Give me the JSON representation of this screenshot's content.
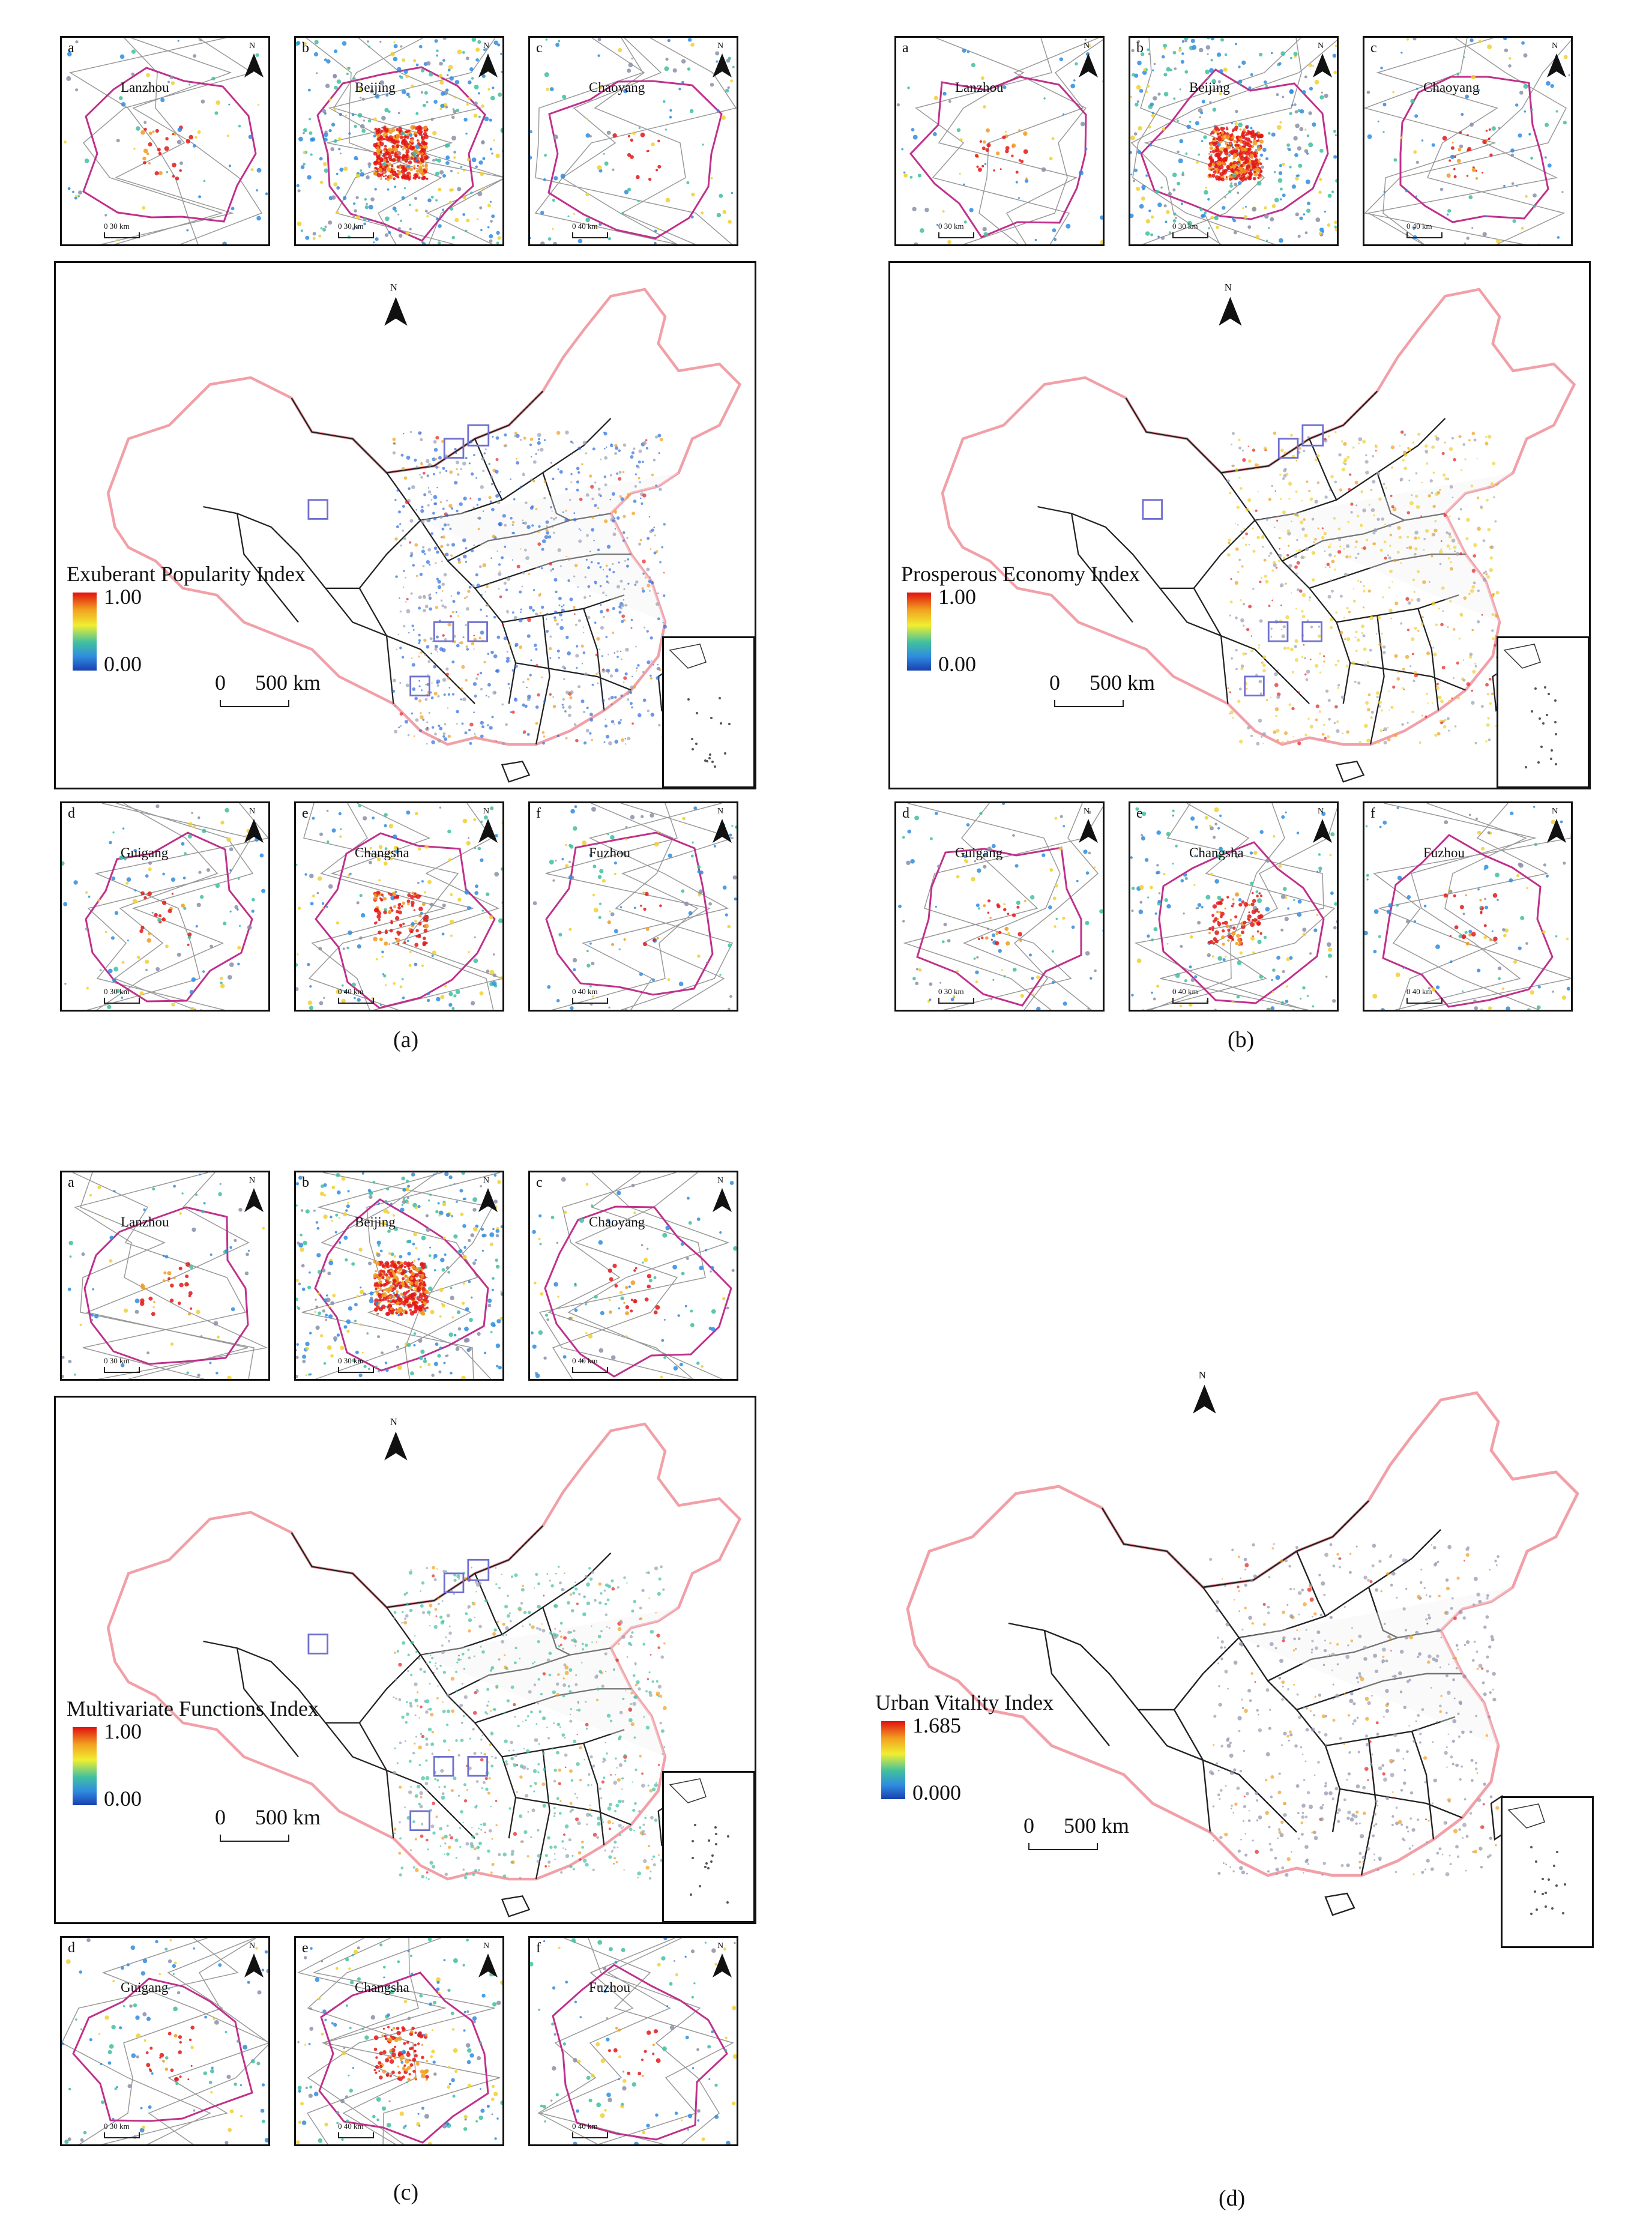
{
  "inset_labels": {
    "a": {
      "letter": "a",
      "city": "Lanzhou",
      "scale": "0   30 km"
    },
    "b": {
      "letter": "b",
      "city": "Beijing",
      "scale": "0   30 km"
    },
    "c": {
      "letter": "c",
      "city": "Chaoyang",
      "scale": "0   40 km"
    },
    "d": {
      "letter": "d",
      "city": "Guigang",
      "scale": "0   30 km"
    },
    "e": {
      "letter": "e",
      "city": "Changsha",
      "scale": "0   40 km"
    },
    "f": {
      "letter": "f",
      "city": "Fuzhou",
      "scale": "0   40 km"
    }
  },
  "north_label": "N",
  "main_scale": {
    "zero": "0",
    "distance": "500  km"
  },
  "panels": [
    {
      "caption": "(a)",
      "index_title": "Exuberant Popularity Index",
      "max": "1.00",
      "min": "0.00"
    },
    {
      "caption": "(b)",
      "index_title": "Prosperous Economy Index",
      "max": "1.00",
      "min": "0.00"
    },
    {
      "caption": "(c)",
      "index_title": "Multivariate Functions Index",
      "max": "1.00",
      "min": "0.00"
    },
    {
      "caption": "(d)",
      "index_title": "Urban Vitality Index",
      "max": "1.685",
      "min": "0.000"
    }
  ],
  "colors": {
    "country_outline": "#f2a0a8",
    "province_outline": "#222222",
    "city_outline": "#c0308a",
    "highlight_box": "#7070d0",
    "ramp_high": "#e01010",
    "ramp_mid": "#f0ef30",
    "ramp_low": "#1a3fb0"
  }
}
